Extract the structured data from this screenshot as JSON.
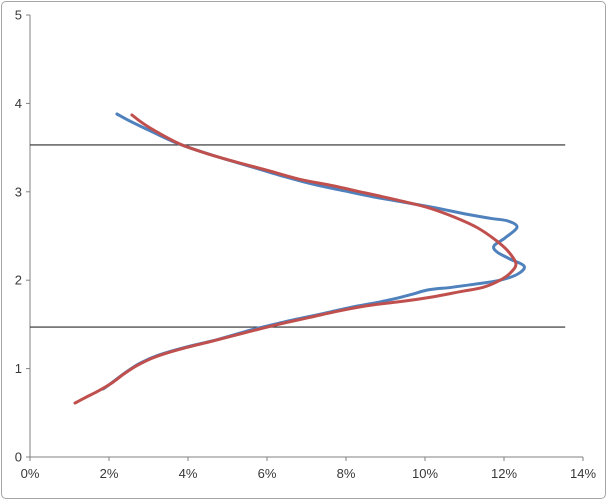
{
  "chart_data": {
    "type": "line",
    "title": "",
    "xlabel": "",
    "ylabel": "",
    "x_axis": {
      "min": 0,
      "max": 14,
      "tick_values": [
        0,
        2,
        4,
        6,
        8,
        10,
        12,
        14
      ],
      "tick_labels": [
        "0%",
        "2%",
        "4%",
        "6%",
        "8%",
        "10%",
        "12%",
        "14%"
      ]
    },
    "y_axis": {
      "min": 0,
      "max": 5,
      "tick_values": [
        0,
        1,
        2,
        3,
        4,
        5
      ],
      "tick_labels": [
        "0",
        "1",
        "2",
        "3",
        "4",
        "5"
      ]
    },
    "grid": "off",
    "legend": "none",
    "reference_lines": [
      {
        "name": "upper-reference-line",
        "y": 3.53,
        "x_start": 0,
        "x_end": 13.55,
        "color": "#2b2b2b"
      },
      {
        "name": "lower-reference-line",
        "y": 1.47,
        "x_start": 0,
        "x_end": 13.55,
        "color": "#2b2b2b"
      }
    ],
    "series": [
      {
        "name": "blue-series",
        "color": "#4F81BD",
        "points": [
          [
            2.2,
            3.88
          ],
          [
            2.53,
            3.8
          ],
          [
            3.04,
            3.69
          ],
          [
            3.67,
            3.56
          ],
          [
            4.23,
            3.47
          ],
          [
            4.94,
            3.37
          ],
          [
            5.7,
            3.27
          ],
          [
            6.46,
            3.17
          ],
          [
            7.22,
            3.08
          ],
          [
            7.97,
            3.01
          ],
          [
            8.73,
            2.94
          ],
          [
            9.49,
            2.88
          ],
          [
            10.25,
            2.82
          ],
          [
            11.01,
            2.75
          ],
          [
            11.65,
            2.7
          ],
          [
            12.1,
            2.67
          ],
          [
            12.33,
            2.6
          ],
          [
            12.03,
            2.48
          ],
          [
            11.75,
            2.39
          ],
          [
            11.82,
            2.32
          ],
          [
            12.15,
            2.24
          ],
          [
            12.51,
            2.16
          ],
          [
            12.35,
            2.07
          ],
          [
            11.9,
            2.0
          ],
          [
            11.34,
            1.96
          ],
          [
            10.68,
            1.92
          ],
          [
            10.08,
            1.89
          ],
          [
            9.67,
            1.84
          ],
          [
            9.32,
            1.8
          ],
          [
            8.81,
            1.75
          ],
          [
            8.1,
            1.69
          ],
          [
            7.29,
            1.61
          ],
          [
            6.46,
            1.53
          ],
          [
            5.62,
            1.44
          ],
          [
            4.76,
            1.33
          ],
          [
            3.92,
            1.24
          ],
          [
            3.24,
            1.15
          ],
          [
            2.78,
            1.06
          ],
          [
            2.43,
            0.96
          ],
          [
            2.13,
            0.86
          ],
          [
            1.92,
            0.79
          ],
          [
            1.85,
            0.77
          ]
        ]
      },
      {
        "name": "red-series",
        "color": "#C0504D",
        "points": [
          [
            2.58,
            3.87
          ],
          [
            2.84,
            3.78
          ],
          [
            3.24,
            3.67
          ],
          [
            3.8,
            3.54
          ],
          [
            4.43,
            3.44
          ],
          [
            5.19,
            3.34
          ],
          [
            6.03,
            3.24
          ],
          [
            6.84,
            3.14
          ],
          [
            7.65,
            3.07
          ],
          [
            8.46,
            2.99
          ],
          [
            9.27,
            2.91
          ],
          [
            10.08,
            2.82
          ],
          [
            10.76,
            2.71
          ],
          [
            11.34,
            2.59
          ],
          [
            11.8,
            2.45
          ],
          [
            12.1,
            2.33
          ],
          [
            12.3,
            2.19
          ],
          [
            12.18,
            2.09
          ],
          [
            11.9,
            2.0
          ],
          [
            11.47,
            1.92
          ],
          [
            10.89,
            1.87
          ],
          [
            10.18,
            1.81
          ],
          [
            9.42,
            1.76
          ],
          [
            8.66,
            1.72
          ],
          [
            7.9,
            1.66
          ],
          [
            7.09,
            1.58
          ],
          [
            6.28,
            1.5
          ],
          [
            5.47,
            1.41
          ],
          [
            4.61,
            1.31
          ],
          [
            3.8,
            1.22
          ],
          [
            3.16,
            1.13
          ],
          [
            2.73,
            1.04
          ],
          [
            2.38,
            0.94
          ],
          [
            2.08,
            0.84
          ],
          [
            1.7,
            0.74
          ],
          [
            1.39,
            0.67
          ],
          [
            1.14,
            0.61
          ]
        ]
      }
    ],
    "axis_color": "#808080",
    "tick_color": "#808080",
    "label_color": "#383838",
    "plot_background": "#ffffff"
  },
  "frame": {
    "border_color": "#a6a6a6",
    "background": "#ffffff"
  }
}
